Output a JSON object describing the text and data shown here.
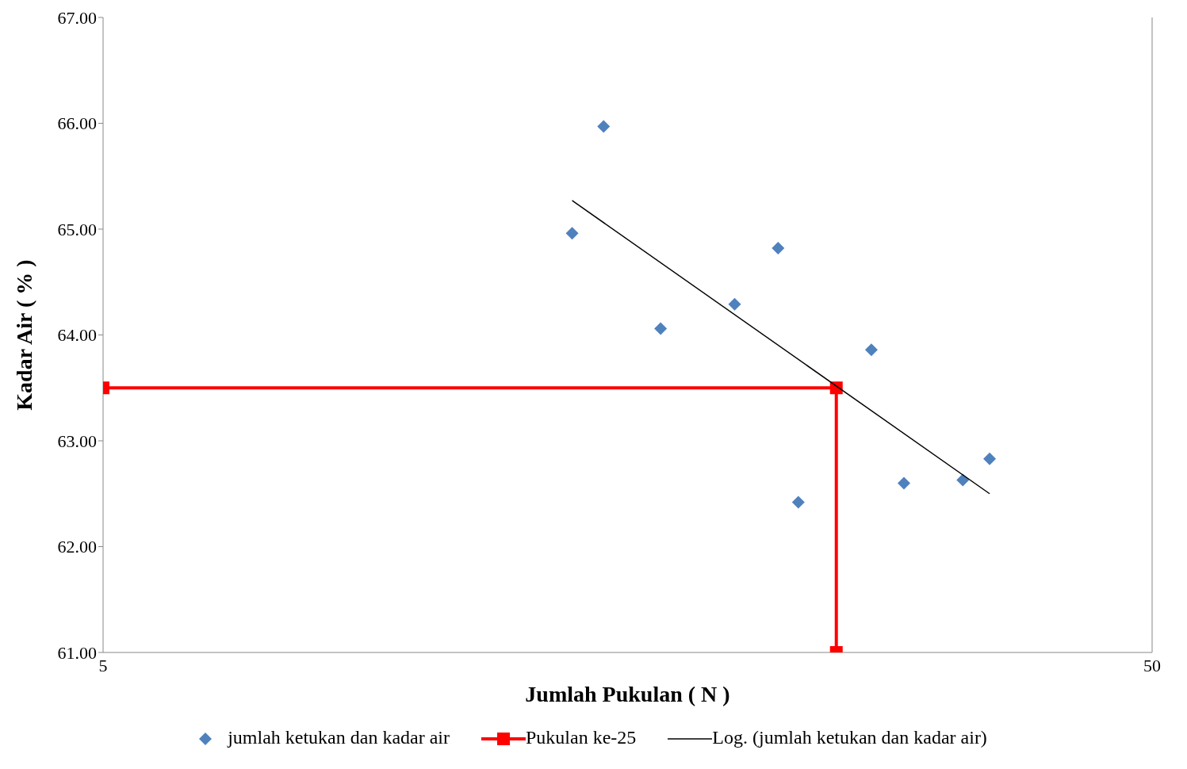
{
  "chart_data": {
    "type": "scatter",
    "xlabel": "Jumlah Pukulan ( N )",
    "ylabel": "Kadar Air ( % )",
    "log": "x",
    "xlim": [
      5,
      50
    ],
    "xticks": [
      5,
      50
    ],
    "ylim": [
      61,
      67
    ],
    "yticks": [
      {
        "value": 61,
        "label": "61.00"
      },
      {
        "value": 62,
        "label": "62.00"
      },
      {
        "value": 63,
        "label": "63.00"
      },
      {
        "value": 64,
        "label": "64.00"
      },
      {
        "value": 65,
        "label": "65.00"
      },
      {
        "value": 66,
        "label": "66.00"
      },
      {
        "value": 67,
        "label": "67.00"
      }
    ],
    "legend": "bottom",
    "series": [
      {
        "name": "jumlah ketukan dan kadar air",
        "marker": "diamond",
        "color": "#4f81bd",
        "x": [
          14,
          15,
          17,
          20,
          22,
          23,
          27,
          29,
          33,
          35
        ],
        "values": [
          64.96,
          65.97,
          64.06,
          64.29,
          64.82,
          62.42,
          63.86,
          62.6,
          62.63,
          62.83
        ]
      },
      {
        "name": "Pukulan ke-25",
        "type": "line",
        "marker": "square",
        "color": "#ff0000",
        "x": [
          5,
          25,
          25
        ],
        "values": [
          63.5,
          63.5,
          61
        ]
      },
      {
        "name": "Log. (jumlah ketukan dan kadar air)",
        "type": "line",
        "marker": "none",
        "color": "#000000",
        "x": [
          14,
          35
        ],
        "values": [
          65.27,
          62.5
        ]
      }
    ]
  }
}
